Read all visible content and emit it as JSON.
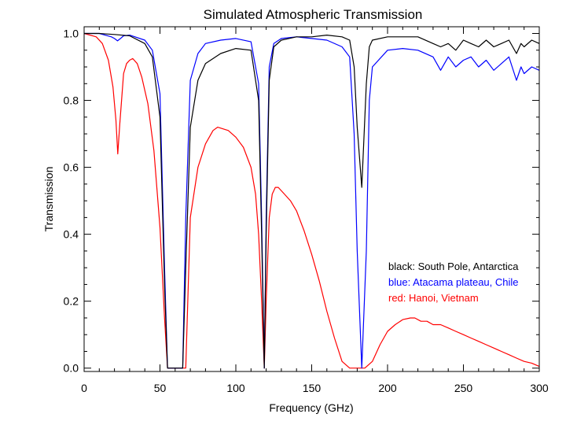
{
  "chart_data": {
    "type": "line",
    "title": "Simulated Atmospheric Transmission",
    "xlabel": "Frequency (GHz)",
    "ylabel": "Transmission",
    "xlim": [
      0,
      300
    ],
    "ylim": [
      -0.01,
      1.02
    ],
    "xticks": [
      0,
      50,
      100,
      150,
      200,
      250,
      300
    ],
    "yticks": [
      0.0,
      0.2,
      0.4,
      0.6,
      0.8,
      1.0
    ],
    "xtick_labels": [
      "0",
      "50",
      "100",
      "150",
      "200",
      "250",
      "300"
    ],
    "ytick_labels": [
      "0.0",
      "0.2",
      "0.4",
      "0.6",
      "0.8",
      "1.0"
    ],
    "legend_position": "right-center",
    "series": [
      {
        "name": "black: South Pole, Antarctica",
        "color": "#000000",
        "x": [
          0,
          10,
          20,
          30,
          40,
          45,
          50,
          53,
          55,
          57,
          60,
          63,
          65,
          67,
          70,
          75,
          80,
          90,
          100,
          110,
          115,
          117,
          118.75,
          120,
          122,
          125,
          130,
          140,
          150,
          160,
          170,
          175,
          178,
          180,
          183,
          186,
          188,
          190,
          200,
          220,
          230,
          235,
          240,
          245,
          250,
          255,
          260,
          265,
          270,
          275,
          280,
          285,
          288,
          290,
          295,
          300
        ],
        "y": [
          1.0,
          1.0,
          0.997,
          0.993,
          0.97,
          0.93,
          0.75,
          0.25,
          0.0,
          0.0,
          0.0,
          0.0,
          0.0,
          0.3,
          0.72,
          0.86,
          0.91,
          0.94,
          0.955,
          0.95,
          0.8,
          0.4,
          0.0,
          0.4,
          0.86,
          0.96,
          0.98,
          0.99,
          0.99,
          0.995,
          0.99,
          0.98,
          0.9,
          0.72,
          0.54,
          0.85,
          0.96,
          0.98,
          0.99,
          0.99,
          0.97,
          0.96,
          0.97,
          0.95,
          0.98,
          0.97,
          0.96,
          0.98,
          0.96,
          0.97,
          0.98,
          0.94,
          0.97,
          0.96,
          0.98,
          0.97
        ]
      },
      {
        "name": "blue: Atacama plateau, Chile",
        "color": "#0000ff",
        "x": [
          0,
          10,
          18,
          20,
          22,
          24,
          26,
          30,
          40,
          45,
          50,
          53,
          55,
          57,
          60,
          63,
          65,
          67,
          70,
          75,
          80,
          90,
          100,
          110,
          115,
          117,
          118.75,
          120,
          122,
          125,
          130,
          140,
          150,
          160,
          170,
          175,
          178,
          180,
          183,
          186,
          188,
          190,
          200,
          210,
          220,
          230,
          235,
          240,
          245,
          250,
          255,
          260,
          265,
          270,
          275,
          280,
          285,
          288,
          290,
          295,
          300
        ],
        "y": [
          1.0,
          1.0,
          0.99,
          0.985,
          0.978,
          0.985,
          0.993,
          0.995,
          0.98,
          0.95,
          0.82,
          0.3,
          0.0,
          0.0,
          0.0,
          0.0,
          0.0,
          0.45,
          0.86,
          0.94,
          0.97,
          0.98,
          0.985,
          0.975,
          0.85,
          0.45,
          0.0,
          0.45,
          0.9,
          0.97,
          0.985,
          0.99,
          0.985,
          0.98,
          0.96,
          0.93,
          0.7,
          0.35,
          0.0,
          0.35,
          0.8,
          0.9,
          0.95,
          0.955,
          0.95,
          0.93,
          0.89,
          0.93,
          0.9,
          0.92,
          0.93,
          0.9,
          0.92,
          0.89,
          0.91,
          0.93,
          0.86,
          0.9,
          0.88,
          0.9,
          0.89
        ]
      },
      {
        "name": "red: Hanoi, Vietnam",
        "color": "#ff0000",
        "x": [
          0,
          8,
          12,
          16,
          19,
          21,
          22.2,
          23.5,
          26,
          28,
          30,
          32,
          35,
          38,
          42,
          46,
          50,
          53,
          55,
          60,
          65,
          67,
          70,
          75,
          80,
          85,
          88,
          95,
          100,
          105,
          110,
          113,
          115,
          117,
          118.75,
          120,
          122,
          124,
          126,
          128,
          132,
          136,
          140,
          145,
          150,
          155,
          160,
          165,
          170,
          175,
          180,
          185,
          190,
          195,
          200,
          205,
          210,
          215,
          218,
          222,
          226,
          230,
          235,
          240,
          245,
          250,
          255,
          260,
          265,
          270,
          275,
          280,
          285,
          290,
          295,
          300
        ],
        "y": [
          1.0,
          0.99,
          0.97,
          0.92,
          0.84,
          0.74,
          0.64,
          0.73,
          0.88,
          0.91,
          0.92,
          0.925,
          0.91,
          0.87,
          0.79,
          0.65,
          0.42,
          0.15,
          0.0,
          0.0,
          0.0,
          0.0,
          0.45,
          0.6,
          0.67,
          0.71,
          0.72,
          0.71,
          0.69,
          0.66,
          0.6,
          0.52,
          0.4,
          0.2,
          0.0,
          0.2,
          0.45,
          0.52,
          0.54,
          0.54,
          0.52,
          0.5,
          0.47,
          0.41,
          0.34,
          0.26,
          0.17,
          0.09,
          0.02,
          0.0,
          0.0,
          0.0,
          0.02,
          0.07,
          0.11,
          0.13,
          0.145,
          0.15,
          0.15,
          0.14,
          0.14,
          0.13,
          0.13,
          0.12,
          0.11,
          0.1,
          0.09,
          0.08,
          0.07,
          0.06,
          0.05,
          0.04,
          0.03,
          0.02,
          0.015,
          0.005
        ]
      }
    ]
  }
}
